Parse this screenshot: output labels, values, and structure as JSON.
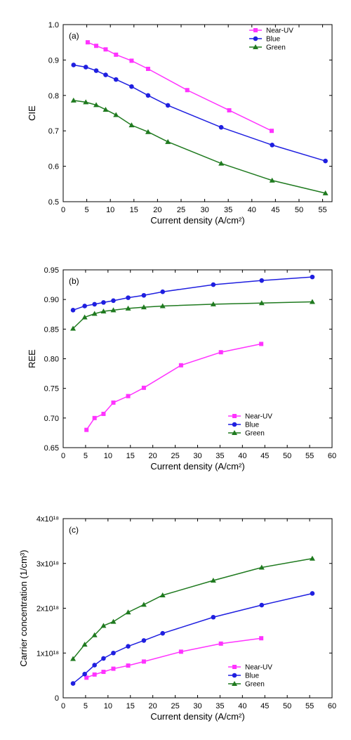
{
  "colors": {
    "near_uv": "#ff33ff",
    "blue": "#1f1fe0",
    "green": "#1f7a1f"
  },
  "chart_data": [
    {
      "type": "line",
      "panel_label": "(a)",
      "xlabel": "Current density (A/cm²)",
      "ylabel": "CIE",
      "xlim": [
        0,
        57
      ],
      "ylim": [
        0.5,
        1.0
      ],
      "xticks": [
        0,
        5,
        10,
        15,
        20,
        25,
        30,
        35,
        40,
        45,
        50,
        55
      ],
      "xtick_labels": [
        "0",
        "5",
        "10",
        "15",
        "20",
        "25",
        "30",
        "35",
        "40",
        "45",
        "50",
        "55"
      ],
      "yticks": [
        0.5,
        0.6,
        0.7,
        0.8,
        0.9,
        1.0
      ],
      "ytick_labels": [
        "0.5",
        "0.6",
        "0.7",
        "0.8",
        "0.9",
        "1.0"
      ],
      "legend": "top-right",
      "series": [
        {
          "name": "Near-UV",
          "marker": "square",
          "color_key": "near_uv",
          "x": [
            5.2,
            7,
            9,
            11.2,
            14.5,
            18,
            26.3,
            35.2,
            44.2
          ],
          "y": [
            0.95,
            0.94,
            0.93,
            0.915,
            0.898,
            0.875,
            0.815,
            0.758,
            0.7
          ]
        },
        {
          "name": "Blue",
          "marker": "circle",
          "color_key": "blue",
          "x": [
            2.2,
            4.8,
            7,
            9,
            11.2,
            14.5,
            18,
            22.2,
            33.5,
            44.3,
            55.6
          ],
          "y": [
            0.886,
            0.88,
            0.87,
            0.858,
            0.845,
            0.825,
            0.8,
            0.772,
            0.71,
            0.66,
            0.615
          ]
        },
        {
          "name": "Green",
          "marker": "triangle",
          "color_key": "green",
          "x": [
            2.2,
            4.8,
            7,
            9,
            11.2,
            14.5,
            18,
            22.2,
            33.5,
            44.3,
            55.6
          ],
          "y": [
            0.786,
            0.781,
            0.773,
            0.76,
            0.745,
            0.716,
            0.697,
            0.669,
            0.608,
            0.56,
            0.524
          ]
        }
      ]
    },
    {
      "type": "line",
      "panel_label": "(b)",
      "xlabel": "Current density (A/cm²)",
      "ylabel": "REE",
      "xlim": [
        0,
        60
      ],
      "ylim": [
        0.65,
        0.95
      ],
      "xticks": [
        0,
        5,
        10,
        15,
        20,
        25,
        30,
        35,
        40,
        45,
        50,
        55,
        60
      ],
      "xtick_labels": [
        "0",
        "5",
        "10",
        "15",
        "20",
        "25",
        "30",
        "35",
        "40",
        "45",
        "50",
        "55",
        "60"
      ],
      "yticks": [
        0.65,
        0.7,
        0.75,
        0.8,
        0.85,
        0.9,
        0.95
      ],
      "ytick_labels": [
        "0.65",
        "0.70",
        "0.75",
        "0.80",
        "0.85",
        "0.90",
        "0.95"
      ],
      "legend": "bottom-right",
      "series": [
        {
          "name": "Near-UV",
          "marker": "square",
          "color_key": "near_uv",
          "x": [
            5.2,
            7,
            9,
            11.2,
            14.5,
            18,
            26.3,
            35.2,
            44.2
          ],
          "y": [
            0.68,
            0.7,
            0.707,
            0.726,
            0.737,
            0.751,
            0.789,
            0.811,
            0.825
          ]
        },
        {
          "name": "Blue",
          "marker": "circle",
          "color_key": "blue",
          "x": [
            2.2,
            4.8,
            7,
            9,
            11.2,
            14.5,
            18,
            22.2,
            33.5,
            44.3,
            55.6
          ],
          "y": [
            0.882,
            0.889,
            0.892,
            0.895,
            0.898,
            0.903,
            0.907,
            0.913,
            0.925,
            0.932,
            0.938
          ]
        },
        {
          "name": "Green",
          "marker": "triangle",
          "color_key": "green",
          "x": [
            2.2,
            4.8,
            7,
            9,
            11.2,
            14.5,
            18,
            22.2,
            33.5,
            44.3,
            55.6
          ],
          "y": [
            0.851,
            0.87,
            0.876,
            0.88,
            0.882,
            0.885,
            0.887,
            0.889,
            0.892,
            0.894,
            0.896
          ]
        }
      ]
    },
    {
      "type": "line",
      "panel_label": "(c)",
      "xlabel": "Current density (A/cm²)",
      "ylabel": "Carrier concentration (1/cm³)",
      "xlim": [
        0,
        60
      ],
      "ylim": [
        0,
        4e+18
      ],
      "xticks": [
        0,
        5,
        10,
        15,
        20,
        25,
        30,
        35,
        40,
        45,
        50,
        55,
        60
      ],
      "xtick_labels": [
        "0",
        "5",
        "10",
        "15",
        "20",
        "25",
        "30",
        "35",
        "40",
        "45",
        "50",
        "55",
        "60"
      ],
      "yticks": [
        0,
        1e+18,
        2e+18,
        3e+18,
        4e+18
      ],
      "ytick_labels": [
        "0",
        "1x10¹⁸",
        "2x10¹⁸",
        "3x10¹⁸",
        "4x10¹⁸"
      ],
      "legend": "bottom-right",
      "series": [
        {
          "name": "Near-UV",
          "marker": "square",
          "color_key": "near_uv",
          "x": [
            5.2,
            7,
            9,
            11.2,
            14.5,
            18,
            26.3,
            35.2,
            44.2
          ],
          "y": [
            4.5e+17,
            5.2e+17,
            5.8e+17,
            6.5e+17,
            7.2e+17,
            8.1e+17,
            1.03e+18,
            1.21e+18,
            1.33e+18
          ]
        },
        {
          "name": "Blue",
          "marker": "circle",
          "color_key": "blue",
          "x": [
            2.2,
            4.8,
            7,
            9,
            11.2,
            14.5,
            18,
            22.2,
            33.5,
            44.3,
            55.6
          ],
          "y": [
            3.2e+17,
            5.3e+17,
            7.3e+17,
            8.8e+17,
            1e+18,
            1.15e+18,
            1.28e+18,
            1.44e+18,
            1.8e+18,
            2.07e+18,
            2.33e+18
          ]
        },
        {
          "name": "Green",
          "marker": "triangle",
          "color_key": "green",
          "x": [
            2.2,
            4.8,
            7,
            9,
            11.2,
            14.5,
            18,
            22.2,
            33.5,
            44.3,
            55.6
          ],
          "y": [
            8.7e+17,
            1.19e+18,
            1.4e+18,
            1.61e+18,
            1.7e+18,
            1.91e+18,
            2.08e+18,
            2.29e+18,
            2.62e+18,
            2.91e+18,
            3.11e+18
          ]
        }
      ]
    }
  ]
}
